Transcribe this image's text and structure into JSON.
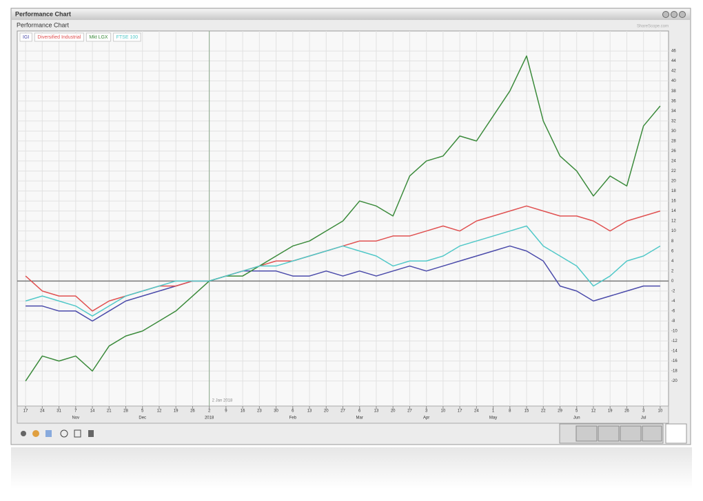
{
  "window_title": "Performance Chart",
  "watermark": "ShareScope.com",
  "chart_data": {
    "type": "line",
    "title": "Performance Chart",
    "categories": [
      "17",
      "24",
      "31",
      "7",
      "14",
      "21",
      "28",
      "5",
      "12",
      "19",
      "26",
      "2",
      "9",
      "16",
      "23",
      "30",
      "6",
      "13",
      "20",
      "27",
      "6",
      "13",
      "20",
      "27",
      "3",
      "10",
      "17",
      "24",
      "1",
      "8",
      "15",
      "22",
      "29",
      "5",
      "12",
      "19",
      "26",
      "3",
      "10"
    ],
    "month_labels": [
      null,
      null,
      null,
      "Nov",
      null,
      null,
      null,
      "Dec",
      null,
      null,
      null,
      "2018",
      null,
      null,
      null,
      null,
      "Feb",
      null,
      null,
      null,
      "Mar",
      null,
      null,
      null,
      "Apr",
      null,
      null,
      null,
      "May",
      null,
      null,
      null,
      null,
      "Jun",
      null,
      null,
      null,
      "Jul",
      null
    ],
    "series": [
      {
        "name": "IGI",
        "color": "#4a4aaa",
        "values": [
          -5,
          -5,
          -6,
          -6,
          -8,
          -6,
          -4,
          -3,
          -2,
          -1,
          0,
          0,
          1,
          2,
          2,
          2,
          1,
          1,
          2,
          1,
          2,
          1,
          2,
          3,
          2,
          3,
          4,
          5,
          6,
          7,
          6,
          4,
          -1,
          -2,
          -4,
          -3,
          -2,
          -1,
          -1
        ]
      },
      {
        "name": "Diversified Industrial",
        "color": "#e05050",
        "values": [
          1,
          -2,
          -3,
          -3,
          -6,
          -4,
          -3,
          -2,
          -1,
          -1,
          0,
          0,
          1,
          2,
          3,
          4,
          4,
          5,
          6,
          7,
          8,
          8,
          9,
          9,
          10,
          11,
          10,
          12,
          13,
          14,
          15,
          14,
          13,
          13,
          12,
          10,
          12,
          13,
          14
        ]
      },
      {
        "name": "Mkt LGX",
        "color": "#3a8a3a",
        "values": [
          -20,
          -15,
          -16,
          -15,
          -18,
          -13,
          -11,
          -10,
          -8,
          -6,
          -3,
          0,
          1,
          1,
          3,
          5,
          7,
          8,
          10,
          12,
          16,
          15,
          13,
          21,
          24,
          25,
          29,
          28,
          33,
          38,
          45,
          32,
          25,
          22,
          17,
          21,
          19,
          31,
          35
        ]
      },
      {
        "name": "FTSE 100",
        "color": "#50c8c8",
        "values": [
          -4,
          -3,
          -4,
          -5,
          -7,
          -5,
          -3,
          -2,
          -1,
          0,
          0,
          0,
          1,
          2,
          3,
          3,
          4,
          5,
          6,
          7,
          6,
          5,
          3,
          4,
          4,
          5,
          7,
          8,
          9,
          10,
          11,
          7,
          5,
          3,
          -1,
          1,
          4,
          5,
          7
        ]
      }
    ],
    "crosshair": {
      "label": "2 Jan 2018",
      "category": 11
    },
    "ylim": [
      -25,
      50
    ],
    "yticks": [
      -20,
      -18,
      -16,
      -14,
      -12,
      -10,
      -8,
      -6,
      -4,
      -2,
      0,
      2,
      4,
      6,
      8,
      10,
      12,
      14,
      16,
      18,
      20,
      22,
      24,
      26,
      28,
      30,
      32,
      34,
      36,
      38,
      40,
      42,
      44,
      46
    ],
    "grid": true
  }
}
